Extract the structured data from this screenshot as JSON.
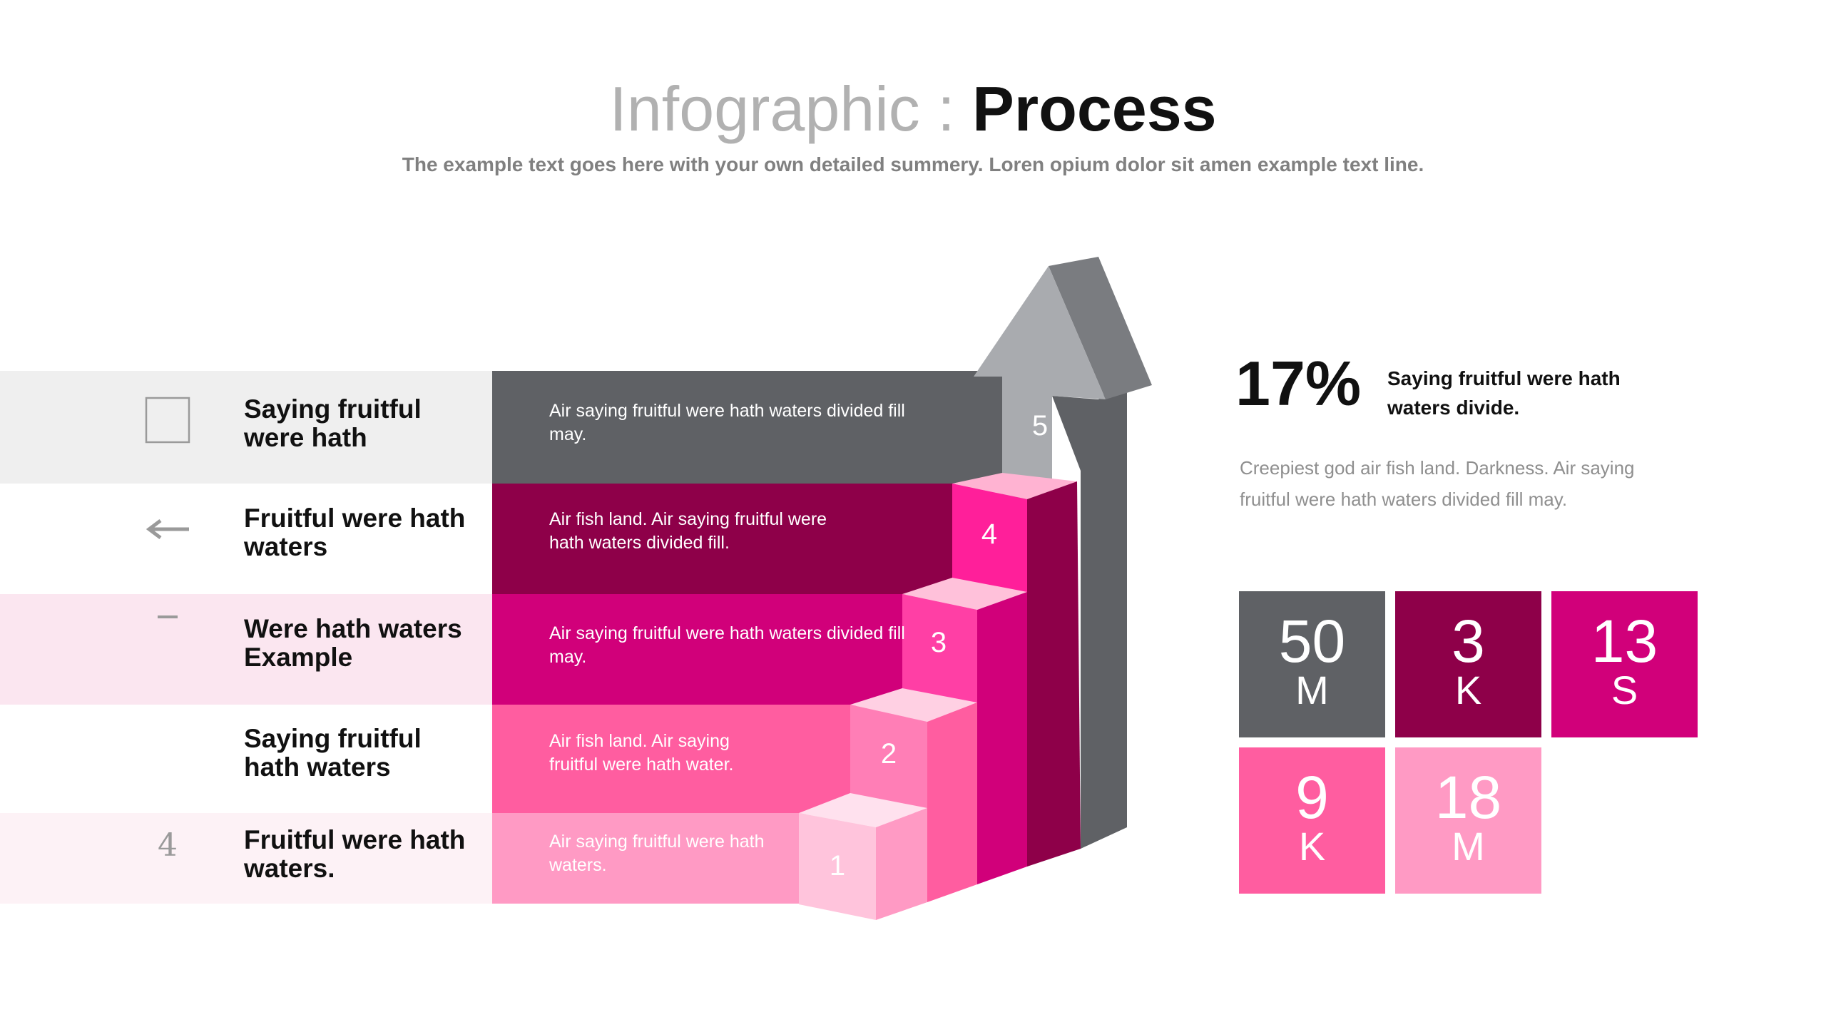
{
  "header": {
    "title_light": "Infographic : ",
    "title_bold": "Process",
    "subtitle": "The example text goes here with your own detailed summery. Loren opium dolor sit amen example text line."
  },
  "colors": {
    "dark_gray": "#5f6165",
    "plum": "#8e0049",
    "magenta": "#d1007a",
    "hot_pink": "#ff5da0",
    "light_pink": "#ff9ac4",
    "row_gray": "#efefef",
    "row_pink": "#fbe6f0",
    "row_pink_light": "#fdf2f6"
  },
  "rows": [
    {
      "icon": "square-icon",
      "label": "Saying fruitful were hath",
      "text": "Air saying fruitful were hath waters divided fill may.",
      "step": "5"
    },
    {
      "icon": "arrow-left-icon",
      "label": "Fruitful were hath waters",
      "text": "Air fish land. Air saying fruitful were hath waters divided fill.",
      "step": "4"
    },
    {
      "icon": "minus-icon",
      "label": "Were hath waters Example",
      "text": "Air saying fruitful were hath waters divided fill may.",
      "step": "3"
    },
    {
      "icon": "none",
      "label": "Saying fruitful hath waters",
      "text": "Air fish land. Air saying fruitful were hath water.",
      "step": "2"
    },
    {
      "icon": "number-four-icon",
      "icon_text": "4",
      "label": "Fruitful were hath waters.",
      "text": "Air saying fruitful were hath waters.",
      "step": "1"
    }
  ],
  "stats": {
    "percent": "17%",
    "headline": "Saying fruitful were hath waters divide.",
    "body": "Creepiest god air fish land. Darkness. Air saying fruitful were hath waters divided fill may.",
    "tiles": [
      {
        "number": "50",
        "unit": "M",
        "color": "#5f6165"
      },
      {
        "number": "3",
        "unit": "K",
        "color": "#8e0049"
      },
      {
        "number": "13",
        "unit": "S",
        "color": "#d1007a"
      },
      {
        "number": "9",
        "unit": "K",
        "color": "#ff5da0"
      },
      {
        "number": "18",
        "unit": "M",
        "color": "#ff9ac4"
      }
    ]
  }
}
